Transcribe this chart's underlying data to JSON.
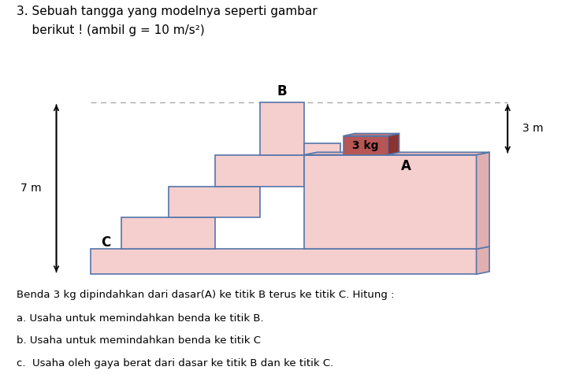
{
  "title_line1": "3. Sebuah tangga yang modelnya seperti gambar",
  "title_line2": "    berikut ! (ambil g = 10 m/s²)",
  "bg_color": "#ffffff",
  "stair_fill": "#f5cece",
  "stair_edge": "#5577aa",
  "box_front_fill": "#b85555",
  "box_top_fill": "#cc7777",
  "box_right_fill": "#8b3333",
  "box_edge": "#5577aa",
  "label_B": "B",
  "label_A": "A",
  "label_C": "C",
  "label_7m": "7 m",
  "label_3m": "3 m",
  "label_3kg": "3 kg",
  "text_line1": "Benda 3 kg dipindahkan dari dasar(A) ke titik B terus ke titik C. Hitung :",
  "text_line2": "a. Usaha untuk memindahkan benda ke titik B.",
  "text_line3": "b. Usaha untuk memindahkan benda ke titik C",
  "text_line4": "c.  Usaha oleh gaya berat dari dasar ke titik B dan ke titik C.",
  "dashed_color": "#aaaaaa",
  "arrow_color": "#000000"
}
